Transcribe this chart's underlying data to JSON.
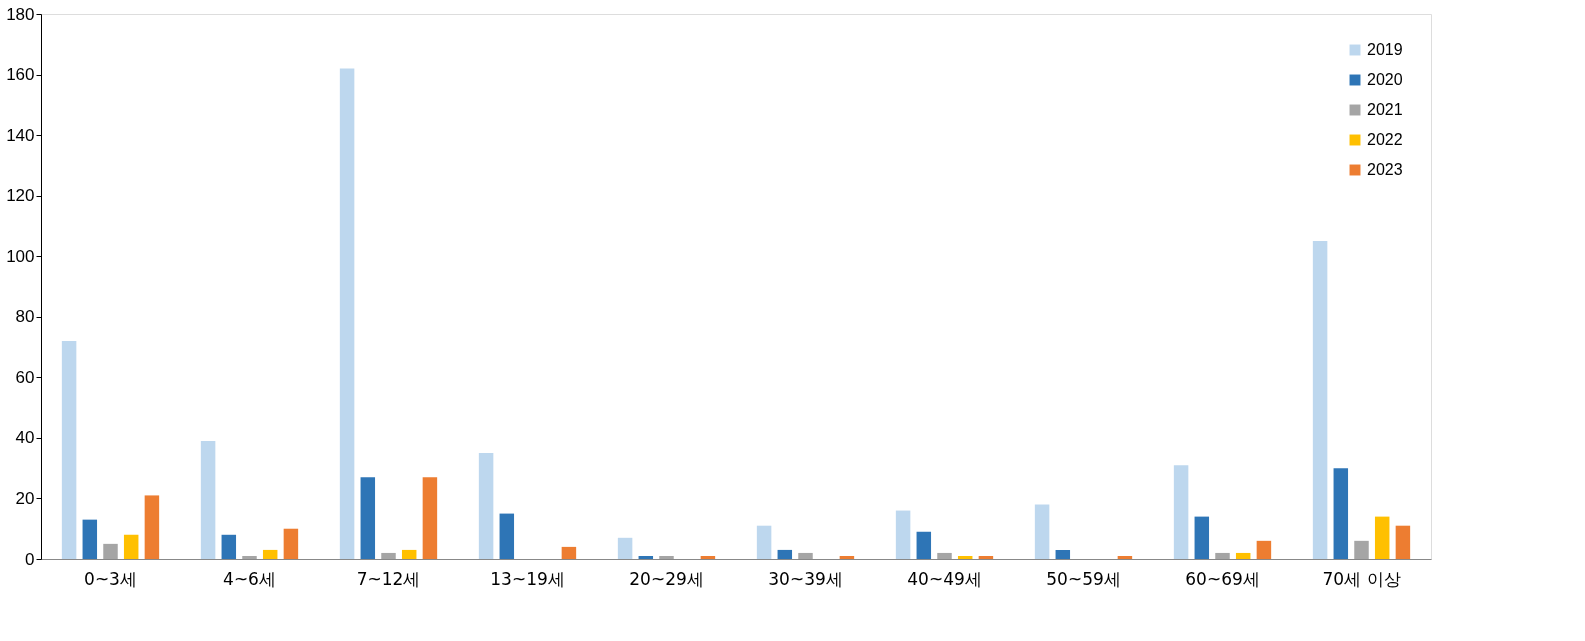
{
  "chart_data": {
    "type": "bar",
    "categories": [
      "0~3세",
      "4~6세",
      "7~12세",
      "13~19세",
      "20~29세",
      "30~39세",
      "40~49세",
      "50~59세",
      "60~69세",
      "70세 이상"
    ],
    "series": [
      {
        "name": "2019",
        "color": "#bdd7ee",
        "values": [
          72,
          39,
          162,
          35,
          7,
          11,
          16,
          18,
          31,
          105
        ]
      },
      {
        "name": "2020",
        "color": "#2e75b6",
        "values": [
          13,
          8,
          27,
          15,
          1,
          3,
          9,
          3,
          14,
          30
        ]
      },
      {
        "name": "2021",
        "color": "#a5a5a5",
        "values": [
          5,
          1,
          2,
          0,
          1,
          2,
          2,
          0,
          2,
          6
        ]
      },
      {
        "name": "2022",
        "color": "#ffc000",
        "values": [
          8,
          3,
          3,
          0,
          0,
          0,
          1,
          0,
          2,
          14
        ]
      },
      {
        "name": "2023",
        "color": "#ed7d31",
        "values": [
          21,
          10,
          27,
          4,
          1,
          1,
          1,
          1,
          6,
          11
        ]
      }
    ],
    "ylim": [
      0,
      180
    ],
    "yticks": [
      0,
      20,
      40,
      60,
      80,
      100,
      120,
      140,
      160,
      180
    ],
    "grid": false,
    "legend": "top right"
  }
}
